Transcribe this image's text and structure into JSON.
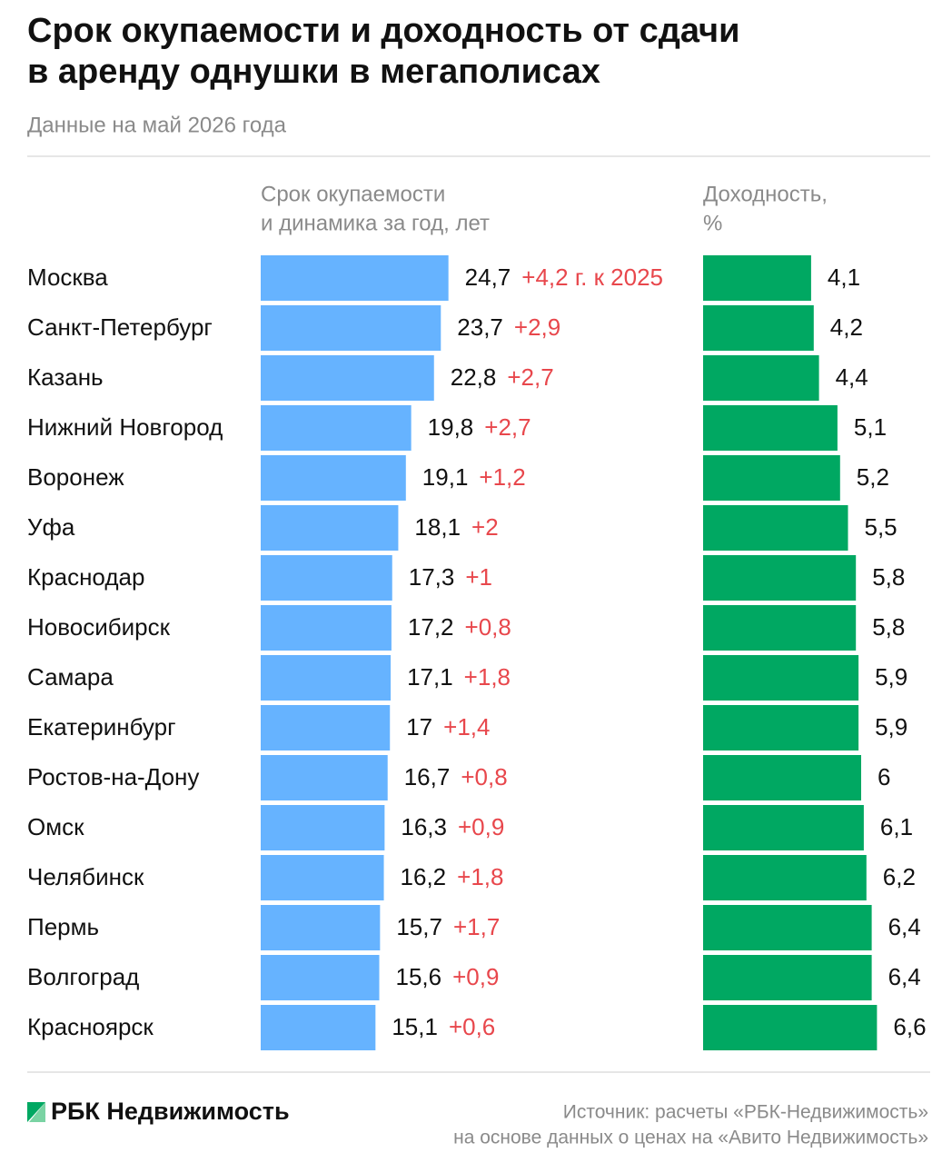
{
  "title_lines": [
    "Срок окупаемости и доходность от сдачи",
    "в аренду однушки в мегаполисах"
  ],
  "subtitle": "Данные на май 2026 года",
  "logo": "РБК Недвижимость",
  "source_lines": [
    "Источник: расчеты «РБК-Недвижимость»",
    "на основе данных о ценах на «Авито Недвижимость»"
  ],
  "chart_data": [
    {
      "type": "bar",
      "orientation": "horizontal",
      "header_lines": [
        "Срок окупаемости",
        "и динамика за год, лет"
      ],
      "categories": [
        "Москва",
        "Санкт-Петербург",
        "Казань",
        "Нижний Новгород",
        "Воронеж",
        "Уфа",
        "Краснодар",
        "Новосибирск",
        "Самара",
        "Екатеринбург",
        "Ростов-на-Дону",
        "Омск",
        "Челябинск",
        "Пермь",
        "Волгоград",
        "Красноярск"
      ],
      "values": [
        24.7,
        23.7,
        22.8,
        19.8,
        19.1,
        18.1,
        17.3,
        17.2,
        17.1,
        17,
        16.7,
        16.3,
        16.2,
        15.7,
        15.6,
        15.1
      ],
      "value_labels": [
        "24,7",
        "23,7",
        "22,8",
        "19,8",
        "19,1",
        "18,1",
        "17,3",
        "17,2",
        "17,1",
        "17",
        "16,7",
        "16,3",
        "16,2",
        "15,7",
        "15,6",
        "15,1"
      ],
      "changes": [
        4.2,
        2.9,
        2.7,
        2.7,
        1.2,
        2,
        1,
        0.8,
        1.8,
        1.4,
        0.8,
        0.9,
        1.8,
        1.7,
        0.9,
        0.6
      ],
      "change_labels": [
        "+4,2 г. к 2025",
        "+2,9",
        "+2,7",
        "+2,7",
        "+1,2",
        "+2",
        "+1",
        "+0,8",
        "+1,8",
        "+1,4",
        "+0,8",
        "+0,9",
        "+1,8",
        "+1,7",
        "+0,9",
        "+0,6"
      ],
      "color": "#66b3ff",
      "change_color": "#e8474c",
      "xlim": [
        0,
        30
      ]
    },
    {
      "type": "bar",
      "orientation": "horizontal",
      "header_lines": [
        "Доходность,",
        "%"
      ],
      "values": [
        4.1,
        4.2,
        4.4,
        5.1,
        5.2,
        5.5,
        5.8,
        5.8,
        5.9,
        5.9,
        6,
        6.1,
        6.2,
        6.4,
        6.4,
        6.6
      ],
      "value_labels": [
        "4,1",
        "4,2",
        "4,4",
        "5,1",
        "5,2",
        "5,5",
        "5,8",
        "5,8",
        "5,9",
        "5,9",
        "6",
        "6,1",
        "6,2",
        "6,4",
        "6,4",
        "6,6"
      ],
      "color": "#00a862",
      "xlim": [
        0,
        8
      ]
    }
  ]
}
